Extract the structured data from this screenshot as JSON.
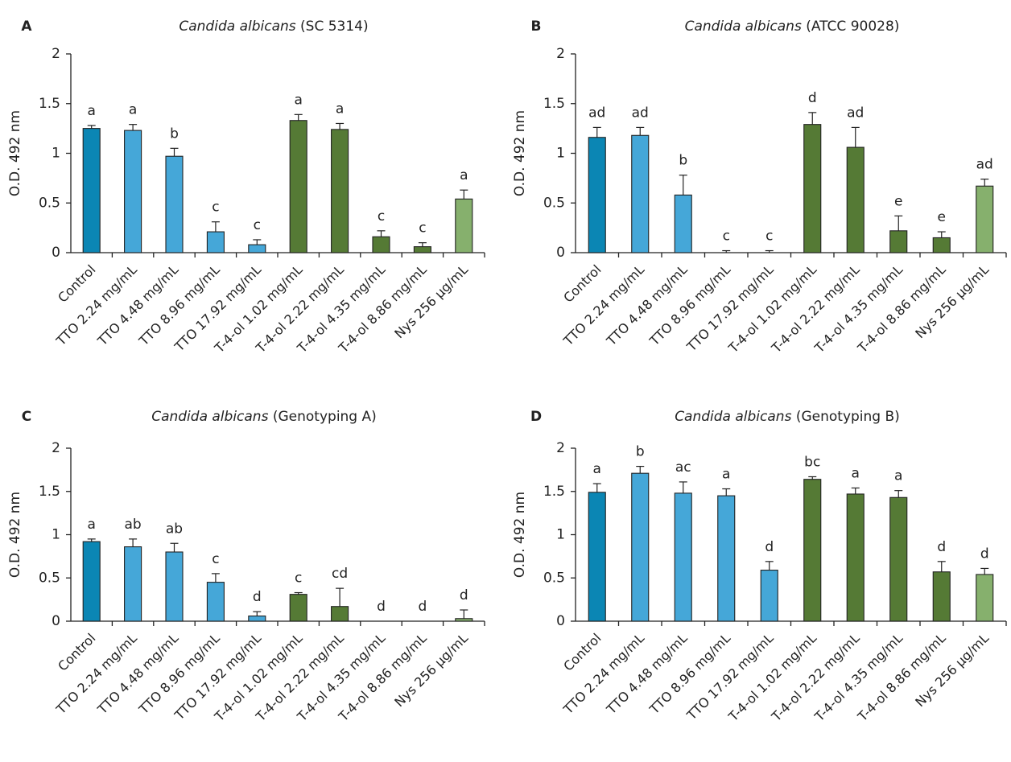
{
  "colors": {
    "control": "#0b86b4",
    "tto": "#45a7d8",
    "t4ol": "#557a35",
    "nys": "#86b06d",
    "stroke": "#222222"
  },
  "chart_data": [
    {
      "type": "bar",
      "panel": "A",
      "title_species": "Candida albicans",
      "title_strain": "(SC 5314)",
      "ylabel": "O.D. 492 nm",
      "ylim": [
        0,
        2
      ],
      "yticks": [
        "0",
        "0.5",
        "1",
        "1.5",
        "2"
      ],
      "categories": [
        "Control",
        "TTO 2.24 mg/mL",
        "TTO 4.48 mg/mL",
        "TTO 8.96 mg/mL",
        "TTO 17.92 mg/mL",
        "T-4-ol  1.02 mg/mL",
        "T-4-ol 2.22 mg/mL",
        "T-4-ol 4.35 mg/mL",
        "T-4-ol 8.86 mg/mL",
        "Nys 256 µg/mL"
      ],
      "values": [
        1.25,
        1.23,
        0.97,
        0.21,
        0.08,
        1.33,
        1.24,
        0.16,
        0.06,
        0.54
      ],
      "errors": [
        0.03,
        0.06,
        0.08,
        0.1,
        0.05,
        0.06,
        0.06,
        0.06,
        0.04,
        0.09
      ],
      "sig_labels": [
        "a",
        "a",
        "b",
        "c",
        "c",
        "a",
        "a",
        "c",
        "c",
        "a"
      ],
      "groups": [
        "control",
        "tto",
        "tto",
        "tto",
        "tto",
        "t4ol",
        "t4ol",
        "t4ol",
        "t4ol",
        "nys"
      ]
    },
    {
      "type": "bar",
      "panel": "B",
      "title_species": "Candida albicans",
      "title_strain": "(ATCC 90028)",
      "ylabel": "O.D. 492 nm",
      "ylim": [
        0,
        2
      ],
      "yticks": [
        "0",
        "0.5",
        "1",
        "1.5",
        "2"
      ],
      "categories": [
        "Control",
        "TTO 2.24 mg/mL",
        "TTO 4.48 mg/mL",
        "TTO 8.96 mg/mL",
        "TTO 17.92 mg/mL",
        "T-4-ol  1.02 mg/mL",
        "T-4-ol 2.22 mg/mL",
        "T-4-ol 4.35 mg/mL",
        "T-4-ol 8.86 mg/mL",
        "Nys 256 µg/mL"
      ],
      "values": [
        1.16,
        1.18,
        0.58,
        0.0,
        0.0,
        1.29,
        1.06,
        0.22,
        0.15,
        0.67
      ],
      "errors": [
        0.1,
        0.08,
        0.2,
        0.02,
        0.02,
        0.12,
        0.2,
        0.15,
        0.06,
        0.07
      ],
      "sig_labels": [
        "ad",
        "ad",
        "b",
        "c",
        "c",
        "d",
        "ad",
        "e",
        "e",
        "ad"
      ],
      "groups": [
        "control",
        "tto",
        "tto",
        "tto",
        "tto",
        "t4ol",
        "t4ol",
        "t4ol",
        "t4ol",
        "nys"
      ]
    },
    {
      "type": "bar",
      "panel": "C",
      "title_species": "Candida albicans",
      "title_strain": "(Genotyping A)",
      "ylabel": "O.D. 492 nm",
      "ylim": [
        0,
        2
      ],
      "yticks": [
        "0",
        "0.5",
        "1",
        "1.5",
        "2"
      ],
      "categories": [
        "Control",
        "TTO 2.24 mg/mL",
        "TTO 4.48 mg/mL",
        "TTO 8.96 mg/mL",
        "TTO 17.92 mg/mL",
        "T-4-ol  1.02 mg/mL",
        "T-4-ol 2.22 mg/mL",
        "T-4-ol 4.35 mg/mL",
        "T-4-ol 8.86 mg/mL",
        "Nys 256 µg/mL"
      ],
      "values": [
        0.92,
        0.86,
        0.8,
        0.45,
        0.06,
        0.31,
        0.17,
        0.0,
        0.0,
        0.03
      ],
      "errors": [
        0.03,
        0.09,
        0.1,
        0.1,
        0.05,
        0.02,
        0.21,
        0.0,
        0.0,
        0.1
      ],
      "sig_labels": [
        "a",
        "ab",
        "ab",
        "c",
        "d",
        "c",
        "cd",
        "d",
        "d",
        "d"
      ],
      "groups": [
        "control",
        "tto",
        "tto",
        "tto",
        "tto",
        "t4ol",
        "t4ol",
        "t4ol",
        "t4ol",
        "nys"
      ]
    },
    {
      "type": "bar",
      "panel": "D",
      "title_species": "Candida albicans",
      "title_strain": "(Genotyping B)",
      "ylabel": "O.D. 492 nm",
      "ylim": [
        0,
        2
      ],
      "yticks": [
        "0",
        "0.5",
        "1",
        "1.5",
        "2"
      ],
      "categories": [
        "Control",
        "TTO 2.24 mg/mL",
        "TTO 4.48 mg/mL",
        "TTO 8.96 mg/mL",
        "TTO 17.92 mg/mL",
        "T-4-ol  1.02 mg/mL",
        "T-4-ol 2.22 mg/mL",
        "T-4-ol 4.35 mg/mL",
        "T-4-ol 8.86 mg/mL",
        "Nys 256 µg/mL"
      ],
      "values": [
        1.49,
        1.71,
        1.48,
        1.45,
        0.59,
        1.64,
        1.47,
        1.43,
        0.57,
        0.54
      ],
      "errors": [
        0.1,
        0.08,
        0.13,
        0.08,
        0.1,
        0.03,
        0.07,
        0.08,
        0.12,
        0.07
      ],
      "sig_labels": [
        "a",
        "b",
        "ac",
        "a",
        "d",
        "bc",
        "a",
        "a",
        "d",
        "d"
      ],
      "groups": [
        "control",
        "tto",
        "tto",
        "tto",
        "tto",
        "t4ol",
        "t4ol",
        "t4ol",
        "t4ol",
        "nys"
      ]
    }
  ]
}
